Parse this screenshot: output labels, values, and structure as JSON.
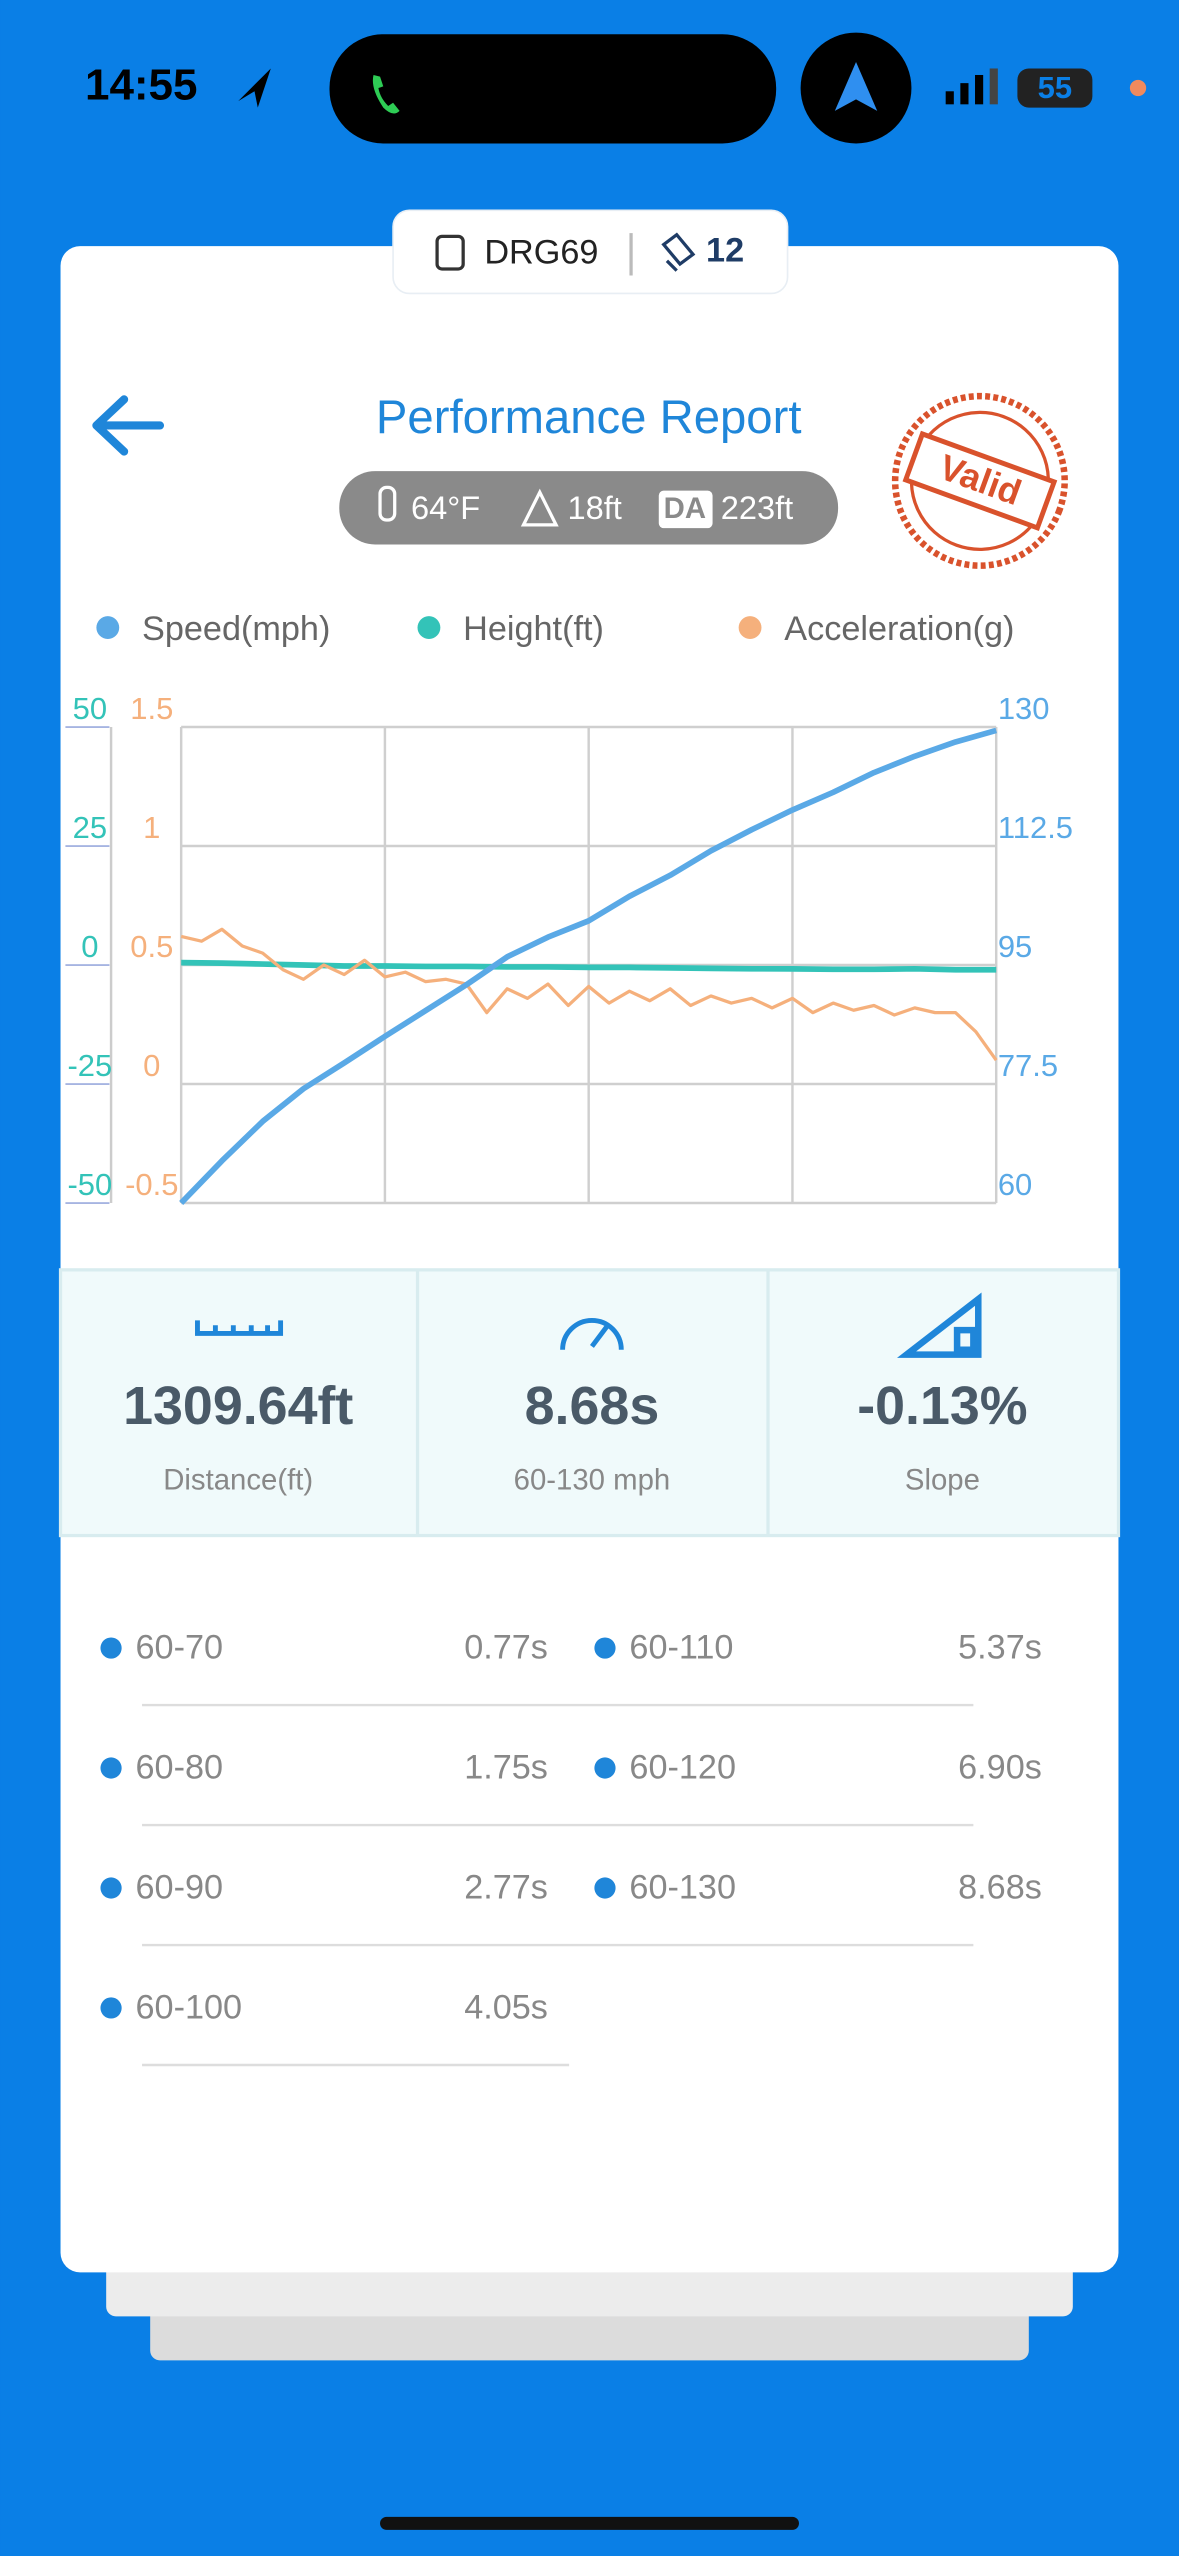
{
  "status_bar": {
    "time": "14:55",
    "battery": "55"
  },
  "vehicle": {
    "name": "DRG69",
    "count": "12"
  },
  "header": {
    "title": "Performance Report",
    "temperature": "64°F",
    "altitude": "18ft",
    "da_label": "DA",
    "density_altitude": "223ft",
    "stamp": "Valid"
  },
  "chart_data": {
    "type": "line",
    "grid": true,
    "ylim": [
      60,
      130
    ],
    "yticks": [
      60,
      77.5,
      95,
      112.5,
      130
    ],
    "y2lim": [
      -50,
      50
    ],
    "y2ticks": [
      -50,
      -25,
      0,
      25,
      50
    ],
    "y3lim": [
      -0.5,
      1.5
    ],
    "y3ticks": [
      -0.5,
      0,
      0.5,
      1,
      1.5
    ],
    "series": [
      {
        "name": "Speed(mph)",
        "color": "#5aa9e6",
        "axis": "y",
        "values": [
          60,
          66.2,
          72.0,
          76.8,
          80.6,
          84.5,
          88.3,
          92.1,
          96.2,
          99.1,
          101.5,
          105.1,
          108.2,
          111.8,
          114.9,
          117.8,
          120.4,
          123.3,
          125.7,
          127.8,
          129.5
        ]
      },
      {
        "name": "Height(ft)",
        "color": "#33c3b8",
        "axis": "y2",
        "values": [
          0.5,
          0.4,
          0.2,
          0,
          -0.2,
          -0.2,
          -0.3,
          -0.3,
          -0.4,
          -0.4,
          -0.5,
          -0.5,
          -0.6,
          -0.7,
          -0.8,
          -0.8,
          -0.9,
          -0.9,
          -0.8,
          -1,
          -1
        ]
      },
      {
        "name": "Acceleration(g)",
        "color": "#f5b07c",
        "axis": "y3",
        "values": [
          0.62,
          0.6,
          0.65,
          0.58,
          0.55,
          0.48,
          0.44,
          0.5,
          0.46,
          0.52,
          0.45,
          0.47,
          0.43,
          0.44,
          0.42,
          0.3,
          0.4,
          0.36,
          0.42,
          0.33,
          0.41,
          0.34,
          0.39,
          0.35,
          0.4,
          0.33,
          0.37,
          0.34,
          0.36,
          0.32,
          0.36,
          0.3,
          0.34,
          0.31,
          0.33,
          0.29,
          0.32,
          0.3,
          0.3,
          0.22,
          0.1
        ]
      }
    ]
  },
  "summary": [
    {
      "value": "1309.64ft",
      "label": "Distance(ft)"
    },
    {
      "value": "8.68s",
      "label": "60-130 mph"
    },
    {
      "value": "-0.13%",
      "label": "Slope"
    }
  ],
  "splits": [
    {
      "range": "60-70",
      "time": "0.77s"
    },
    {
      "range": "60-80",
      "time": "1.75s"
    },
    {
      "range": "60-90",
      "time": "2.77s"
    },
    {
      "range": "60-100",
      "time": "4.05s"
    },
    {
      "range": "60-110",
      "time": "5.37s"
    },
    {
      "range": "60-120",
      "time": "6.90s"
    },
    {
      "range": "60-130",
      "time": "8.68s"
    }
  ]
}
